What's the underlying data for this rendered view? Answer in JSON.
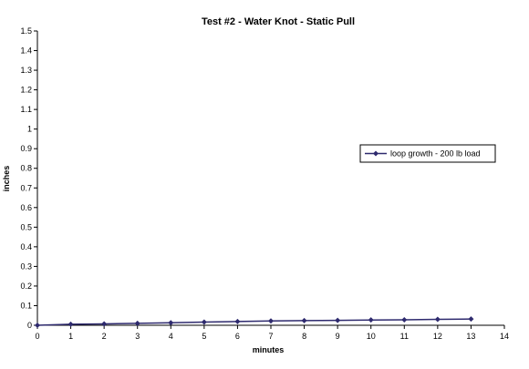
{
  "chart_data": {
    "type": "line",
    "title": "Test #2 - Water Knot - Static Pull",
    "xlabel": "minutes",
    "ylabel": "inches",
    "xlim": [
      0,
      14
    ],
    "ylim": [
      0,
      1.5
    ],
    "x_ticks": [
      0,
      1,
      2,
      3,
      4,
      5,
      6,
      7,
      8,
      9,
      10,
      11,
      12,
      13,
      14
    ],
    "y_ticks": [
      0,
      0.1,
      0.2,
      0.3,
      0.4,
      0.5,
      0.6,
      0.7,
      0.8,
      0.9,
      1,
      1.1,
      1.2,
      1.3,
      1.4,
      1.5
    ],
    "grid": false,
    "legend_position": "right",
    "series": [
      {
        "name": "loop growth - 200 lb load",
        "color": "#2e2a6e",
        "x": [
          0,
          1,
          2,
          3,
          4,
          5,
          6,
          7,
          8,
          9,
          10,
          11,
          12,
          13
        ],
        "y": [
          0,
          0.005,
          0.007,
          0.01,
          0.013,
          0.016,
          0.019,
          0.022,
          0.024,
          0.025,
          0.027,
          0.028,
          0.03,
          0.032
        ]
      }
    ]
  }
}
